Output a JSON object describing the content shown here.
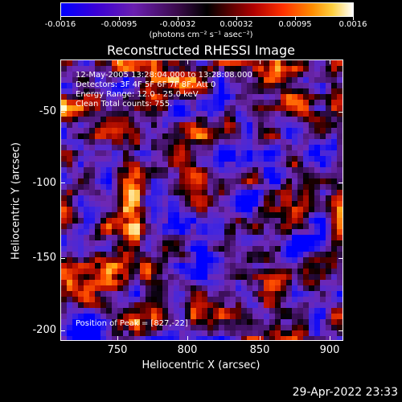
{
  "colorbar": {
    "tick_labels": [
      "-0.0016",
      "-0.00095",
      "-0.00032",
      "0.00032",
      "0.00095",
      "0.0016"
    ],
    "units_label": "(photons cm⁻² s⁻¹ asec⁻²)",
    "colors": [
      "#0000ff",
      "#6a1fb0",
      "#000000",
      "#b00000",
      "#ff8c00",
      "#ffffff"
    ]
  },
  "title": "Reconstructed RHESSI Image",
  "info": {
    "time_range": "12-May-2005 13:28:04.000 to 13:28:08.000",
    "detectors": "Detectors: 3F 4F 5F 6F 7F 8F, Att 0",
    "energy_range": "Energy Range: 12.0 - 25.0 keV",
    "clean_counts": "Clean     Total counts: 755.",
    "peak": "Position of Peak = [827,-22]"
  },
  "axes": {
    "x_title": "Heliocentric X (arcsec)",
    "y_title": "Heliocentric Y (arcsec)",
    "x_ticks": [
      "750",
      "800",
      "850",
      "900"
    ],
    "y_ticks": [
      "-50",
      "-100",
      "-150",
      "-200"
    ]
  },
  "timestamp": "29-Apr-2022 23:33"
}
